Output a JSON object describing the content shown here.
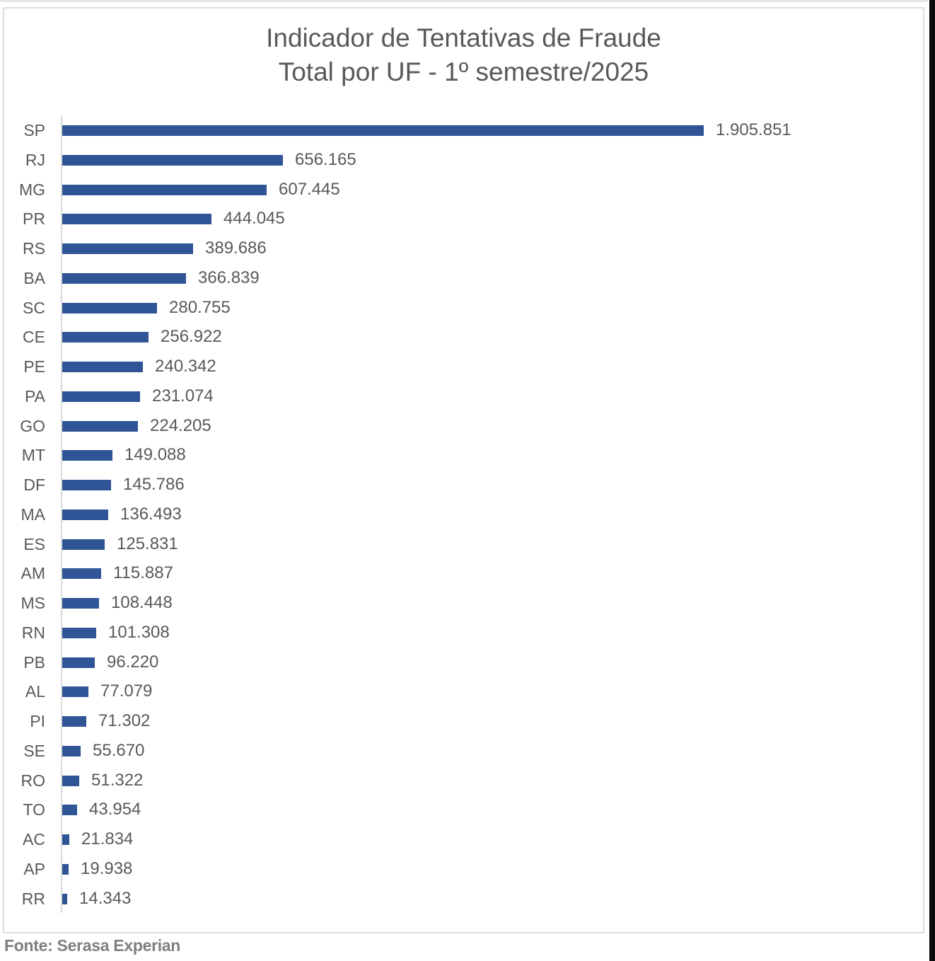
{
  "chart_data": {
    "type": "bar",
    "orientation": "horizontal",
    "title": "Indicador de Tentativas de Fraude",
    "subtitle": "Total por UF - 1º semestre/2025",
    "xlabel": "",
    "ylabel": "",
    "grid": false,
    "legend": null,
    "bar_color": "#2f5597",
    "categories": [
      "SP",
      "RJ",
      "MG",
      "PR",
      "RS",
      "BA",
      "SC",
      "CE",
      "PE",
      "PA",
      "GO",
      "MT",
      "DF",
      "MA",
      "ES",
      "AM",
      "MS",
      "RN",
      "PB",
      "AL",
      "PI",
      "SE",
      "RO",
      "TO",
      "AC",
      "AP",
      "RR"
    ],
    "values": [
      1905851,
      656165,
      607445,
      444045,
      389686,
      366839,
      280755,
      256922,
      240342,
      231074,
      224205,
      149088,
      145786,
      136493,
      125831,
      115887,
      108448,
      101308,
      96220,
      77079,
      71302,
      55670,
      51322,
      43954,
      21834,
      19938,
      14343
    ],
    "value_labels": [
      "1.905.851",
      "656.165",
      "607.445",
      "444.045",
      "389.686",
      "366.839",
      "280.755",
      "256.922",
      "240.342",
      "231.074",
      "224.205",
      "149.088",
      "145.786",
      "136.493",
      "125.831",
      "115.887",
      "108.448",
      "101.308",
      "96.220",
      "77.079",
      "71.302",
      "55.670",
      "51.322",
      "43.954",
      "21.834",
      "19.938",
      "14.343"
    ]
  },
  "title": {
    "line1": "Indicador de Tentativas de Fraude",
    "line2": "Total por UF - 1º semestre/2025"
  },
  "source": "Fonte: Serasa Experian"
}
